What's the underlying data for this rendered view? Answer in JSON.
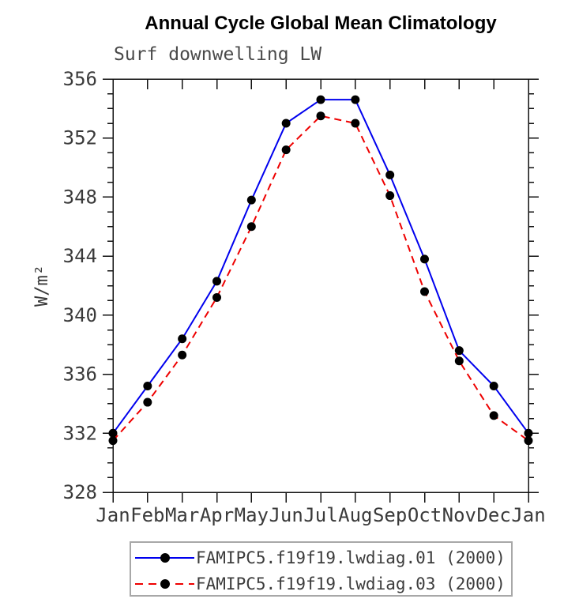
{
  "header": {
    "title": "Annual Cycle Global Mean Climatology",
    "subtitle": "Surf downwelling LW"
  },
  "chart_data": {
    "type": "line",
    "title": "Annual Cycle Global Mean Climatology",
    "subtitle": "Surf downwelling LW",
    "xlabel": "",
    "ylabel": "W/m²",
    "ylim": [
      328,
      356
    ],
    "yticks": [
      328,
      332,
      336,
      340,
      344,
      348,
      352,
      356
    ],
    "minor_tick_interval": 1,
    "grid": "off",
    "legend_position": "bottom",
    "x_labels": [
      "Jan",
      "Feb",
      "Mar",
      "Apr",
      "May",
      "Jun",
      "Jul",
      "Aug",
      "Sep",
      "Oct",
      "Nov",
      "Dec",
      "Jan"
    ],
    "series": [
      {
        "name": "FAMIPC5.f19f19.lwdiag.01 (2000)",
        "color": "#0000ee",
        "line_style": "solid",
        "marker": "circle",
        "marker_color": "#000000",
        "values": [
          332.0,
          335.2,
          338.4,
          342.3,
          347.8,
          353.0,
          354.6,
          354.6,
          349.5,
          343.8,
          337.6,
          335.2,
          332.0
        ]
      },
      {
        "name": "FAMIPC5.f19f19.lwdiag.03 (2000)",
        "color": "#ee0000",
        "line_style": "dashed",
        "marker": "circle",
        "marker_color": "#000000",
        "values": [
          331.5,
          334.1,
          337.3,
          341.2,
          346.0,
          351.2,
          353.5,
          353.0,
          348.1,
          341.6,
          336.9,
          333.2,
          331.5
        ]
      }
    ],
    "axis_color": "#111111",
    "tick_label_color": "#3a3a3a"
  }
}
